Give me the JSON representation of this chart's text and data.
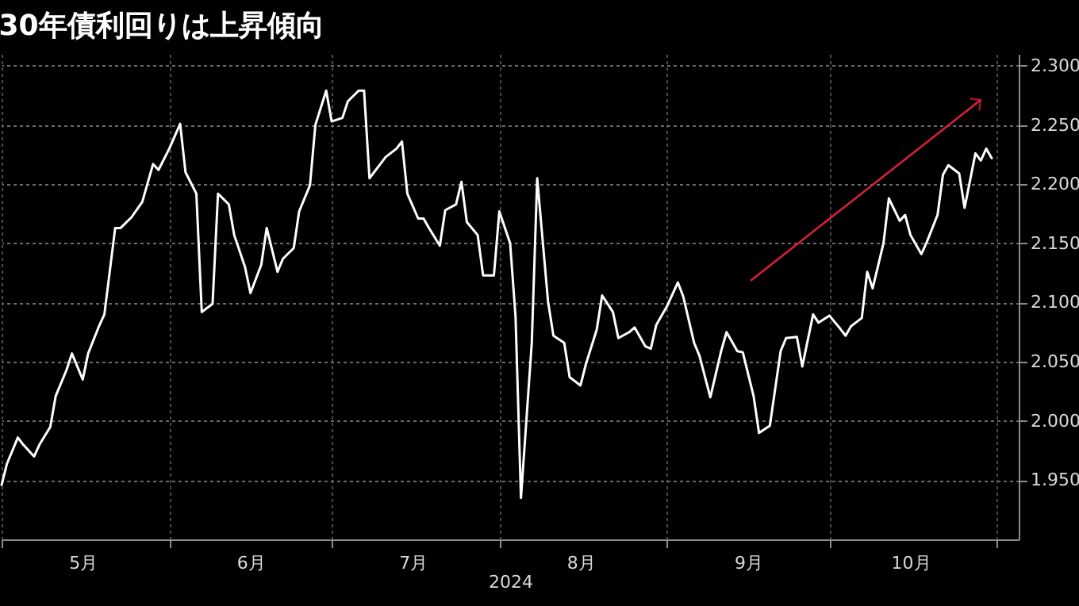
{
  "chart_data": {
    "type": "line",
    "title": "30年債利回りは上昇傾向",
    "xlabel": "2024",
    "x": [
      "2024-05-01",
      "2024-05-02",
      "2024-05-04",
      "2024-05-05",
      "2024-05-07",
      "2024-05-08",
      "2024-05-10",
      "2024-05-11",
      "2024-05-13",
      "2024-05-14",
      "2024-05-16",
      "2024-05-17",
      "2024-05-19",
      "2024-05-20",
      "2024-05-22",
      "2024-05-23",
      "2024-05-25",
      "2024-05-27",
      "2024-05-29",
      "2024-05-30",
      "2024-06-01",
      "2024-06-03",
      "2024-06-04",
      "2024-06-06",
      "2024-06-07",
      "2024-06-09",
      "2024-06-10",
      "2024-06-12",
      "2024-06-13",
      "2024-06-15",
      "2024-06-16",
      "2024-06-18",
      "2024-06-19",
      "2024-06-21",
      "2024-06-22",
      "2024-06-24",
      "2024-06-25",
      "2024-06-27",
      "2024-06-28",
      "2024-06-30",
      "2024-07-01",
      "2024-07-03",
      "2024-07-04",
      "2024-07-06",
      "2024-07-07",
      "2024-07-08",
      "2024-07-10",
      "2024-07-11",
      "2024-07-13",
      "2024-07-14",
      "2024-07-15",
      "2024-07-17",
      "2024-07-18",
      "2024-07-19",
      "2024-07-21",
      "2024-07-22",
      "2024-07-24",
      "2024-07-25",
      "2024-07-26",
      "2024-07-28",
      "2024-07-29",
      "2024-07-31",
      "2024-08-01",
      "2024-08-03",
      "2024-08-04",
      "2024-08-05",
      "2024-08-07",
      "2024-08-08",
      "2024-08-10",
      "2024-08-11",
      "2024-08-13",
      "2024-08-14",
      "2024-08-16",
      "2024-08-17",
      "2024-08-19",
      "2024-08-20",
      "2024-08-22",
      "2024-08-23",
      "2024-08-25",
      "2024-08-26",
      "2024-08-28",
      "2024-08-29",
      "2024-08-30",
      "2024-09-01",
      "2024-09-03",
      "2024-09-04",
      "2024-09-06",
      "2024-09-07",
      "2024-09-09",
      "2024-09-11",
      "2024-09-12",
      "2024-09-14",
      "2024-09-15",
      "2024-09-17",
      "2024-09-18",
      "2024-09-20",
      "2024-09-22",
      "2024-09-23",
      "2024-09-25",
      "2024-09-26",
      "2024-09-28",
      "2024-09-29",
      "2024-10-01",
      "2024-10-03",
      "2024-10-04",
      "2024-10-05",
      "2024-10-07",
      "2024-10-08",
      "2024-10-09",
      "2024-10-11",
      "2024-10-12",
      "2024-10-14",
      "2024-10-15",
      "2024-10-16",
      "2024-10-18",
      "2024-10-19",
      "2024-10-21",
      "2024-10-22",
      "2024-10-23",
      "2024-10-25",
      "2024-10-26",
      "2024-10-28",
      "2024-10-29",
      "2024-10-30",
      "2024-10-31"
    ],
    "series": [
      {
        "color": "#ffffff",
        "values": [
          1.946,
          1.964,
          1.986,
          1.98,
          1.97,
          1.98,
          1.995,
          2.021,
          2.043,
          2.057,
          2.035,
          2.057,
          2.08,
          2.09,
          2.163,
          2.163,
          2.172,
          2.185,
          2.217,
          2.212,
          2.23,
          2.251,
          2.21,
          2.192,
          2.092,
          2.099,
          2.192,
          2.183,
          2.157,
          2.13,
          2.108,
          2.132,
          2.163,
          2.126,
          2.137,
          2.146,
          2.177,
          2.199,
          2.25,
          2.279,
          2.253,
          2.256,
          2.27,
          2.279,
          2.279,
          2.205,
          2.217,
          2.223,
          2.23,
          2.236,
          2.192,
          2.171,
          2.171,
          2.163,
          2.148,
          2.178,
          2.183,
          2.202,
          2.168,
          2.157,
          2.123,
          2.123,
          2.177,
          2.15,
          2.088,
          1.935,
          2.066,
          2.205,
          2.101,
          2.072,
          2.066,
          2.037,
          2.03,
          2.048,
          2.077,
          2.106,
          2.092,
          2.07,
          2.075,
          2.079,
          2.063,
          2.061,
          2.081,
          2.097,
          2.117,
          2.105,
          2.066,
          2.055,
          2.02,
          2.059,
          2.075,
          2.059,
          2.058,
          2.021,
          1.99,
          1.996,
          2.059,
          2.07,
          2.071,
          2.046,
          2.09,
          2.083,
          2.089,
          2.078,
          2.072,
          2.08,
          2.087,
          2.126,
          2.112,
          2.15,
          2.188,
          2.169,
          2.174,
          2.157,
          2.141,
          2.151,
          2.174,
          2.208,
          2.216,
          2.209,
          2.18,
          2.226,
          2.22,
          2.23,
          2.222
        ]
      }
    ],
    "xlim": [
      "2024-05-01",
      "2024-11-05"
    ],
    "xticks": [
      {
        "value": "2024-05-01",
        "label": null
      },
      {
        "value": "2024-05-16",
        "label": "5月"
      },
      {
        "value": "2024-06-01",
        "label": null
      },
      {
        "value": "2024-06-16",
        "label": "6月"
      },
      {
        "value": "2024-07-01",
        "label": null
      },
      {
        "value": "2024-07-16",
        "label": "7月"
      },
      {
        "value": "2024-08-01",
        "label": null
      },
      {
        "value": "2024-08-16",
        "label": "8月"
      },
      {
        "value": "2024-09-01",
        "label": null
      },
      {
        "value": "2024-09-16",
        "label": "9月"
      },
      {
        "value": "2024-10-01",
        "label": null
      },
      {
        "value": "2024-10-16",
        "label": "10月"
      },
      {
        "value": "2024-11-01",
        "label": null
      }
    ],
    "ylim": [
      1.9,
      2.31
    ],
    "yticks": [
      {
        "value": 1.95,
        "label": "1.950"
      },
      {
        "value": 2.0,
        "label": "2.000"
      },
      {
        "value": 2.05,
        "label": "2.050"
      },
      {
        "value": 2.1,
        "label": "2.100"
      },
      {
        "value": 2.15,
        "label": "2.150"
      },
      {
        "value": 2.2,
        "label": "2.200"
      },
      {
        "value": 2.25,
        "label": "2.250"
      },
      {
        "value": 2.3,
        "label": "2.300"
      }
    ],
    "grid": true,
    "marker": "none",
    "line_style": "solid"
  }
}
